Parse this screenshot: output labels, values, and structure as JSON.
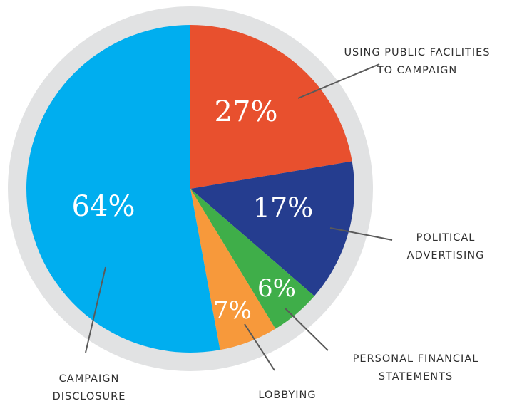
{
  "chart_data": {
    "type": "pie",
    "categories": [
      "USING PUBLIC FACILITIES TO CAMPAIGN",
      "POLITICAL ADVERTISING",
      "PERSONAL FINANCIAL STATEMENTS",
      "LOBBYING",
      "CAMPAIGN DISCLOSURE"
    ],
    "values": [
      27,
      17,
      6,
      7,
      64
    ],
    "value_labels": [
      "27%",
      "17%",
      "6%",
      "7%",
      "64%"
    ],
    "colors": [
      "#e8502e",
      "#253d8f",
      "#3fae49",
      "#f7993b",
      "#00aeef"
    ]
  }
}
